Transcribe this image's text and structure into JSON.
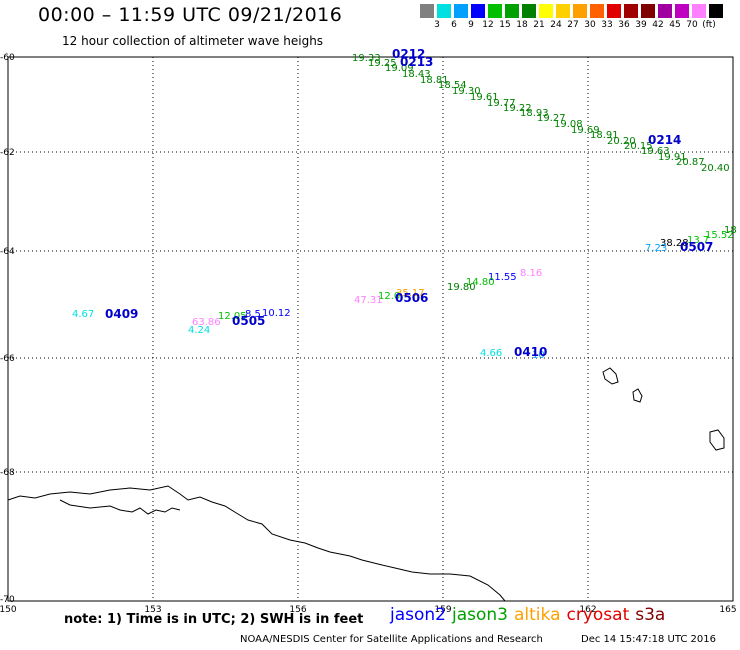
{
  "header": {
    "title": "00:00 – 11:59 UTC 09/21/2016",
    "subtitle": "12 hour collection of altimeter wave heighs"
  },
  "legend": {
    "colors": [
      "#808080",
      "#00e0e0",
      "#00a0ff",
      "#0000ff",
      "#00c000",
      "#00a000",
      "#008000",
      "#ffff00",
      "#ffd000",
      "#ffa000",
      "#ff6000",
      "#e00000",
      "#a00000",
      "#800000",
      "#a000a0",
      "#c000c0",
      "#ff80ff",
      "#000000"
    ],
    "labels": [
      "3",
      "6",
      "9",
      "12",
      "15",
      "18",
      "21",
      "24",
      "27",
      "30",
      "33",
      "36",
      "39",
      "42",
      "45",
      "70",
      "(ft)"
    ]
  },
  "axes": {
    "longitude_ticks": [
      "150",
      "153",
      "156",
      "159",
      "162",
      "165"
    ],
    "latitude_ticks": [
      "-60",
      "-62",
      "-64",
      "-66",
      "-68",
      "-70"
    ]
  },
  "observations": [
    {
      "t": "19.33",
      "c": "#008000"
    },
    {
      "t": "19.25",
      "c": "#008000"
    },
    {
      "t": "19.09",
      "c": "#008000"
    },
    {
      "t": "18.43",
      "c": "#008000"
    },
    {
      "t": "18.81",
      "c": "#008000"
    },
    {
      "t": "18.54",
      "c": "#008000"
    },
    {
      "t": "19.30",
      "c": "#008000"
    },
    {
      "t": "19.61",
      "c": "#008000"
    },
    {
      "t": "19.77",
      "c": "#008000"
    },
    {
      "t": "19.22",
      "c": "#008000"
    },
    {
      "t": "18.93",
      "c": "#008000"
    },
    {
      "t": "19.27",
      "c": "#008000"
    },
    {
      "t": "19.08",
      "c": "#008000"
    },
    {
      "t": "19.69",
      "c": "#008000"
    },
    {
      "t": "18.91",
      "c": "#008000"
    },
    {
      "t": "20.20",
      "c": "#008000"
    },
    {
      "t": "20.15",
      "c": "#008000"
    },
    {
      "t": "19.63",
      "c": "#008000"
    },
    {
      "t": "19.91",
      "c": "#008000"
    },
    {
      "t": "20.87",
      "c": "#008000"
    },
    {
      "t": "20.40",
      "c": "#008000"
    },
    {
      "t": "18",
      "c": "#008000"
    },
    {
      "t": "15.52",
      "c": "#00c000"
    },
    {
      "t": "13.7",
      "c": "#00c000"
    },
    {
      "t": "38.28",
      "c": "#000000"
    },
    {
      "t": "7.23",
      "c": "#00a0ff"
    },
    {
      "t": "8.16",
      "c": "#ff80ff"
    },
    {
      "t": "11.55",
      "c": "#0000ff"
    },
    {
      "t": "14.80",
      "c": "#00c000"
    },
    {
      "t": "19.80",
      "c": "#008000"
    },
    {
      "t": "35.17",
      "c": "#ffa000"
    },
    {
      "t": "12.0",
      "c": "#00c000"
    },
    {
      "t": "47.31",
      "c": "#ff80ff"
    },
    {
      "t": "4.67",
      "c": "#00e0e0"
    },
    {
      "t": "63.86",
      "c": "#ff80ff"
    },
    {
      "t": "12.05",
      "c": "#00c000"
    },
    {
      "t": "8.5",
      "c": "#0000ff"
    },
    {
      "t": "10.12",
      "c": "#0000ff"
    },
    {
      "t": "4.24",
      "c": "#00e0e0"
    },
    {
      "t": "4.66",
      "c": "#00e0e0"
    },
    {
      "t": "10",
      "c": "#00a0ff"
    }
  ],
  "time_labels": [
    "0212",
    "0213",
    "0214",
    "0507",
    "0506",
    "0409",
    "0505",
    "0410"
  ],
  "footer": {
    "note": "note: 1) Time is in UTC; 2) SWH is in feet",
    "satellites": [
      {
        "name": "jason2",
        "color": "#0000ff"
      },
      {
        "name": "jason3",
        "color": "#00a000"
      },
      {
        "name": "altika",
        "color": "#ffa000"
      },
      {
        "name": "cryosat",
        "color": "#e00000"
      },
      {
        "name": "s3a",
        "color": "#800000"
      }
    ],
    "credit": "NOAA/NESDIS Center for Satellite Applications and Research",
    "timestamp": "Dec 14 15:47:18 UTC 2016"
  }
}
